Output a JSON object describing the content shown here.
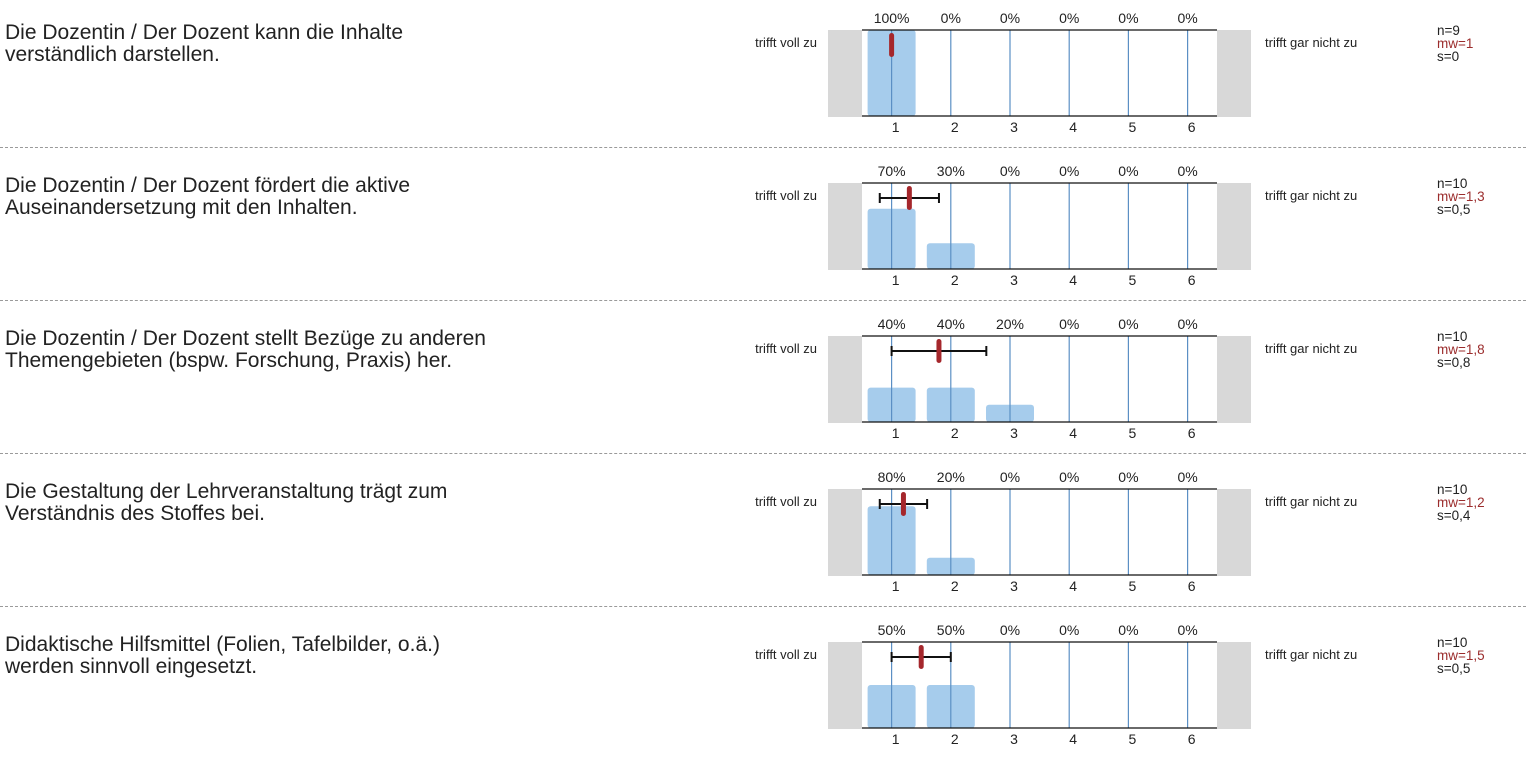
{
  "scale": {
    "left_label": "trifft voll zu",
    "right_label": "trifft gar nicht zu",
    "categories": [
      "1",
      "2",
      "3",
      "4",
      "5",
      "6"
    ]
  },
  "colors": {
    "bar": "#a6ccec",
    "gridline": "#5b8fc4",
    "mean_marker": "#a5272c",
    "error_bar": "#111111",
    "side_box": "#d8d8d8",
    "mw_text": "#9b2c2c"
  },
  "questions": [
    {
      "text": "Die Dozentin / Der Dozent kann die Inhalte\nverständlich darstellen.",
      "percent_labels": [
        "100%",
        "0%",
        "0%",
        "0%",
        "0%",
        "0%"
      ],
      "chart_data": {
        "type": "bar",
        "categories": [
          "1",
          "2",
          "3",
          "4",
          "5",
          "6"
        ],
        "values": [
          100,
          0,
          0,
          0,
          0,
          0
        ],
        "ylim": [
          0,
          100
        ],
        "mean": 1,
        "sd": 0
      },
      "stats": {
        "n": "n=9",
        "mw": "mw=1",
        "s": "s=0"
      }
    },
    {
      "text": "Die Dozentin / Der Dozent fördert die aktive\nAuseinandersetzung mit den Inhalten.",
      "percent_labels": [
        "70%",
        "30%",
        "0%",
        "0%",
        "0%",
        "0%"
      ],
      "chart_data": {
        "type": "bar",
        "categories": [
          "1",
          "2",
          "3",
          "4",
          "5",
          "6"
        ],
        "values": [
          70,
          30,
          0,
          0,
          0,
          0
        ],
        "ylim": [
          0,
          100
        ],
        "mean": 1.3,
        "sd": 0.5
      },
      "stats": {
        "n": "n=10",
        "mw": "mw=1,3",
        "s": "s=0,5"
      }
    },
    {
      "text": "Die Dozentin / Der Dozent stellt Bezüge zu anderen\nThemengebieten (bspw. Forschung, Praxis) her.",
      "percent_labels": [
        "40%",
        "40%",
        "20%",
        "0%",
        "0%",
        "0%"
      ],
      "chart_data": {
        "type": "bar",
        "categories": [
          "1",
          "2",
          "3",
          "4",
          "5",
          "6"
        ],
        "values": [
          40,
          40,
          20,
          0,
          0,
          0
        ],
        "ylim": [
          0,
          100
        ],
        "mean": 1.8,
        "sd": 0.8
      },
      "stats": {
        "n": "n=10",
        "mw": "mw=1,8",
        "s": "s=0,8"
      }
    },
    {
      "text": "Die Gestaltung der Lehrveranstaltung trägt zum\nVerständnis des Stoffes bei.",
      "percent_labels": [
        "80%",
        "20%",
        "0%",
        "0%",
        "0%",
        "0%"
      ],
      "chart_data": {
        "type": "bar",
        "categories": [
          "1",
          "2",
          "3",
          "4",
          "5",
          "6"
        ],
        "values": [
          80,
          20,
          0,
          0,
          0,
          0
        ],
        "ylim": [
          0,
          100
        ],
        "mean": 1.2,
        "sd": 0.4
      },
      "stats": {
        "n": "n=10",
        "mw": "mw=1,2",
        "s": "s=0,4"
      }
    },
    {
      "text": "Didaktische Hilfsmittel (Folien, Tafelbilder, o.ä.)\nwerden sinnvoll eingesetzt.",
      "percent_labels": [
        "50%",
        "50%",
        "0%",
        "0%",
        "0%",
        "0%"
      ],
      "chart_data": {
        "type": "bar",
        "categories": [
          "1",
          "2",
          "3",
          "4",
          "5",
          "6"
        ],
        "values": [
          50,
          50,
          0,
          0,
          0,
          0
        ],
        "ylim": [
          0,
          100
        ],
        "mean": 1.5,
        "sd": 0.5
      },
      "stats": {
        "n": "n=10",
        "mw": "mw=1,5",
        "s": "s=0,5"
      }
    }
  ]
}
